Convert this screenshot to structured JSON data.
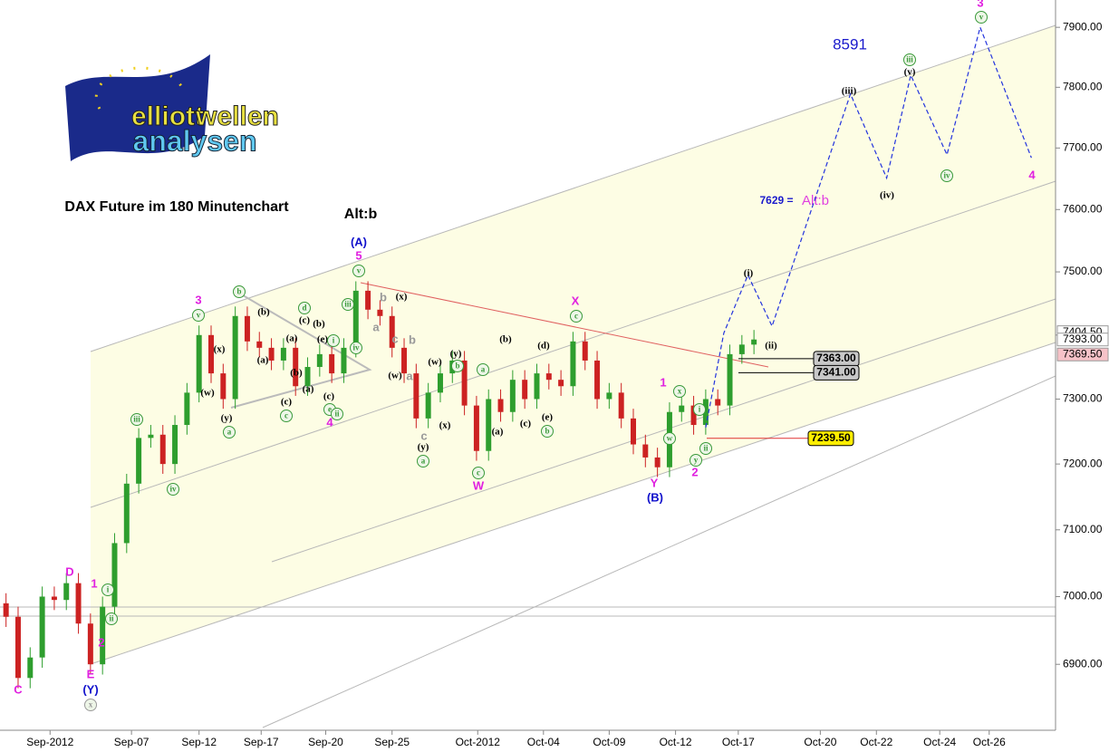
{
  "chart_data": {
    "type": "candlestick",
    "title": "DAX Future im 180 Minutenchart",
    "alt_label": "Alt:b",
    "target": "8591",
    "forecast_note": "7629 =",
    "forecast_alt": "Alt:b",
    "logo": [
      "elliott",
      "wellen",
      "analysen"
    ],
    "log_y": true,
    "up_color": "#2e9e2e",
    "down_color": "#cc2222",
    "xlim": [
      0,
      175
    ],
    "ylim": [
      6804,
      7946
    ],
    "yticks": [
      {
        "value": 6900,
        "label": "6900.00"
      },
      {
        "value": 7000,
        "label": "7000.00"
      },
      {
        "value": 7100,
        "label": "7100.00"
      },
      {
        "value": 7200,
        "label": "7200.00"
      },
      {
        "value": 7300,
        "label": "7300.00"
      },
      {
        "value": 7400,
        "label": "7400.00"
      },
      {
        "value": 7500,
        "label": "7500.00"
      },
      {
        "value": 7600,
        "label": "7600.00"
      },
      {
        "value": 7700,
        "label": "7700.00"
      },
      {
        "value": 7800,
        "label": "7800.00"
      },
      {
        "value": 7900,
        "label": "7900.00"
      }
    ],
    "xticks": [
      {
        "value": 8.3,
        "label": "Sep-2012"
      },
      {
        "value": 21.8,
        "label": "Sep-07"
      },
      {
        "value": 33,
        "label": "Sep-12"
      },
      {
        "value": 43.3,
        "label": "Sep-17"
      },
      {
        "value": 54,
        "label": "Sep-20"
      },
      {
        "value": 65,
        "label": "Sep-25"
      },
      {
        "value": 79.2,
        "label": "Oct-2012"
      },
      {
        "value": 90.1,
        "label": "Oct-04"
      },
      {
        "value": 101,
        "label": "Oct-09"
      },
      {
        "value": 112,
        "label": "Oct-12"
      },
      {
        "value": 122.4,
        "label": "Oct-17"
      },
      {
        "value": 136,
        "label": "Oct-20"
      },
      {
        "value": 145.3,
        "label": "Oct-22"
      },
      {
        "value": 155.8,
        "label": "Oct-24"
      },
      {
        "value": 164,
        "label": "Oct-26"
      }
    ],
    "x": [
      1,
      3,
      5,
      7,
      9,
      11,
      13,
      15,
      17,
      19,
      21,
      23,
      25,
      27,
      29,
      31,
      33,
      35,
      37,
      39,
      41,
      43,
      45,
      47,
      49,
      51,
      53,
      55,
      57,
      59,
      61,
      63,
      65,
      67,
      69,
      71,
      73,
      75,
      77,
      79,
      81,
      83,
      85,
      87,
      89,
      91,
      93,
      95,
      97,
      99,
      101,
      103,
      105,
      107,
      109,
      111,
      113,
      115,
      117,
      119,
      121,
      123,
      125
    ],
    "open": [
      6990,
      6970,
      6880,
      6910,
      7000,
      6995,
      7020,
      6960,
      6900,
      6985,
      7080,
      7170,
      7240,
      7245,
      7200,
      7260,
      7310,
      7400,
      7340,
      7300,
      7430,
      7390,
      7380,
      7360,
      7380,
      7320,
      7350,
      7370,
      7340,
      7380,
      7470,
      7440,
      7430,
      7380,
      7340,
      7270,
      7310,
      7340,
      7360,
      7290,
      7220,
      7300,
      7280,
      7330,
      7300,
      7340,
      7330,
      7320,
      7390,
      7360,
      7300,
      7310,
      7270,
      7230,
      7210,
      7195,
      7280,
      7290,
      7260,
      7300,
      7290,
      7370,
      7385
    ],
    "high": [
      7005,
      6985,
      6925,
      7015,
      7015,
      7035,
      7035,
      6975,
      7000,
      7095,
      7185,
      7255,
      7260,
      7260,
      7275,
      7325,
      7415,
      7415,
      7355,
      7445,
      7445,
      7405,
      7395,
      7395,
      7395,
      7365,
      7385,
      7385,
      7395,
      7485,
      7485,
      7455,
      7445,
      7395,
      7355,
      7325,
      7355,
      7375,
      7375,
      7305,
      7315,
      7315,
      7345,
      7345,
      7355,
      7355,
      7345,
      7405,
      7405,
      7375,
      7325,
      7325,
      7285,
      7245,
      7225,
      7295,
      7305,
      7305,
      7315,
      7315,
      7385,
      7400,
      7408
    ],
    "low": [
      6955,
      6865,
      6865,
      6895,
      6980,
      6980,
      6945,
      6885,
      6885,
      6970,
      7065,
      7155,
      7225,
      7185,
      7185,
      7245,
      7295,
      7325,
      7285,
      7285,
      7375,
      7365,
      7345,
      7345,
      7305,
      7305,
      7335,
      7325,
      7325,
      7365,
      7425,
      7415,
      7365,
      7325,
      7255,
      7255,
      7295,
      7325,
      7275,
      7205,
      7205,
      7265,
      7265,
      7285,
      7285,
      7315,
      7305,
      7305,
      7345,
      7285,
      7285,
      7255,
      7215,
      7195,
      7180,
      7180,
      7265,
      7245,
      7245,
      7275,
      7275,
      7355,
      7370
    ],
    "close": [
      6970,
      6880,
      6910,
      7000,
      6995,
      7020,
      6960,
      6900,
      6985,
      7080,
      7170,
      7240,
      7245,
      7200,
      7260,
      7310,
      7400,
      7340,
      7300,
      7430,
      7390,
      7380,
      7360,
      7380,
      7320,
      7350,
      7370,
      7340,
      7380,
      7470,
      7440,
      7430,
      7380,
      7340,
      7270,
      7310,
      7340,
      7360,
      7290,
      7220,
      7300,
      7280,
      7330,
      7300,
      7340,
      7330,
      7320,
      7390,
      7360,
      7300,
      7310,
      7270,
      7230,
      7210,
      7195,
      7280,
      7290,
      7260,
      7300,
      7290,
      7370,
      7385,
      7393
    ],
    "forecast": {
      "color": "#2233dd",
      "x": [
        117,
        120,
        124,
        128,
        141,
        147,
        151,
        157,
        162.5,
        171
      ],
      "y": [
        7256,
        7403,
        7495,
        7414,
        7789,
        7651,
        7820,
        7689,
        7900,
        7684
      ]
    },
    "levels": [
      {
        "value": 7363,
        "label": "7363.00",
        "color": "#c8c8c8"
      },
      {
        "value": 7341,
        "label": "7341.00",
        "color": "#c8c8c8"
      },
      {
        "value": 7239.5,
        "label": "7239.50",
        "color": "#ffee00"
      }
    ],
    "price_tags": [
      {
        "value": 7404.5,
        "label": "7404.50",
        "color": "#ffffff"
      },
      {
        "value": 7393,
        "label": "7393.00",
        "color": "#ffffff"
      },
      {
        "value": 7369.5,
        "label": "7369.50",
        "color": "#f6c2c8"
      }
    ],
    "wave_labels": [
      {
        "text": "C",
        "color": "#e020e0",
        "circled": false
      },
      {
        "text": "D",
        "color": "#e020e0",
        "circled": false
      },
      {
        "text": "E",
        "color": "#e020e0",
        "circled": false
      },
      {
        "text": "(Y)",
        "color": "#1010cc",
        "circled": false
      },
      {
        "text": "x",
        "color": "#999999",
        "circled": true
      },
      {
        "text": "1",
        "color": "#e020e0",
        "circled": false
      },
      {
        "text": "2",
        "color": "#e020e0",
        "circled": false
      },
      {
        "text": "i",
        "color": "#3a9a3a",
        "circled": true
      },
      {
        "text": "ii",
        "color": "#3a9a3a",
        "circled": true
      },
      {
        "text": "iii",
        "color": "#3a9a3a",
        "circled": true
      },
      {
        "text": "iv",
        "color": "#3a9a3a",
        "circled": true
      },
      {
        "text": "3",
        "color": "#e020e0",
        "circled": false
      },
      {
        "text": "v",
        "color": "#3a9a3a",
        "circled": true
      },
      {
        "text": "(x)",
        "color": "#000000",
        "circled": false
      },
      {
        "text": "(w)",
        "color": "#000000",
        "circled": false
      },
      {
        "text": "(y)",
        "color": "#000000",
        "circled": false
      },
      {
        "text": "a",
        "color": "#3a9a3a",
        "circled": true
      },
      {
        "text": "b",
        "color": "#3a9a3a",
        "circled": true
      },
      {
        "text": "(b)",
        "color": "#000000",
        "circled": false
      },
      {
        "text": "(a)",
        "color": "#000000",
        "circled": false
      },
      {
        "text": "(c)",
        "color": "#000000",
        "circled": false
      },
      {
        "text": "c",
        "color": "#3a9a3a",
        "circled": true
      },
      {
        "text": "(a)",
        "color": "#000000",
        "circled": false
      },
      {
        "text": "(b)",
        "color": "#000000",
        "circled": false
      },
      {
        "text": "d",
        "color": "#3a9a3a",
        "circled": true
      },
      {
        "text": "(c)",
        "color": "#000000",
        "circled": false
      },
      {
        "text": "(a)",
        "color": "#000000",
        "circled": false
      },
      {
        "text": "(b)",
        "color": "#000000",
        "circled": false
      },
      {
        "text": "(e)",
        "color": "#000000",
        "circled": false
      },
      {
        "text": "(c)",
        "color": "#000000",
        "circled": false
      },
      {
        "text": "e",
        "color": "#3a9a3a",
        "circled": true
      },
      {
        "text": "4",
        "color": "#e020e0",
        "circled": false
      },
      {
        "text": "i",
        "color": "#3a9a3a",
        "circled": true
      },
      {
        "text": "ii",
        "color": "#3a9a3a",
        "circled": true
      },
      {
        "text": "iii",
        "color": "#3a9a3a",
        "circled": true
      },
      {
        "text": "iv",
        "color": "#3a9a3a",
        "circled": true
      },
      {
        "text": "(A)",
        "color": "#1010cc",
        "circled": false
      },
      {
        "text": "5",
        "color": "#e020e0",
        "circled": false
      },
      {
        "text": "v",
        "color": "#3a9a3a",
        "circled": true
      },
      {
        "text": "(x)",
        "color": "#000000",
        "circled": false
      },
      {
        "text": "b",
        "color": "#999999",
        "circled": false
      },
      {
        "text": "a",
        "color": "#999999",
        "circled": false
      },
      {
        "text": "c",
        "color": "#999999",
        "circled": false
      },
      {
        "text": "b",
        "color": "#999999",
        "circled": false
      },
      {
        "text": "(w)",
        "color": "#000000",
        "circled": false
      },
      {
        "text": "a",
        "color": "#999999",
        "circled": false
      },
      {
        "text": "c",
        "color": "#999999",
        "circled": false
      },
      {
        "text": "(y)",
        "color": "#000000",
        "circled": false
      },
      {
        "text": "a",
        "color": "#3a9a3a",
        "circled": true
      },
      {
        "text": "(w)",
        "color": "#000000",
        "circled": false
      },
      {
        "text": "(y)",
        "color": "#000000",
        "circled": false
      },
      {
        "text": "b",
        "color": "#3a9a3a",
        "circled": true
      },
      {
        "text": "(x)",
        "color": "#000000",
        "circled": false
      },
      {
        "text": "a",
        "color": "#3a9a3a",
        "circled": true
      },
      {
        "text": "(a)",
        "color": "#000000",
        "circled": false
      },
      {
        "text": "c",
        "color": "#3a9a3a",
        "circled": true
      },
      {
        "text": "W",
        "color": "#e020e0",
        "circled": false
      },
      {
        "text": "(b)",
        "color": "#000000",
        "circled": false
      },
      {
        "text": "(c)",
        "color": "#000000",
        "circled": false
      },
      {
        "text": "(d)",
        "color": "#000000",
        "circled": false
      },
      {
        "text": "(e)",
        "color": "#000000",
        "circled": false
      },
      {
        "text": "b",
        "color": "#3a9a3a",
        "circled": true
      },
      {
        "text": "X",
        "color": "#e020e0",
        "circled": false
      },
      {
        "text": "c",
        "color": "#3a9a3a",
        "circled": true
      },
      {
        "text": "1",
        "color": "#e020e0",
        "circled": false
      },
      {
        "text": "x",
        "color": "#3a9a3a",
        "circled": true
      },
      {
        "text": "w",
        "color": "#3a9a3a",
        "circled": true
      },
      {
        "text": "i",
        "color": "#3a9a3a",
        "circled": true
      },
      {
        "text": "ii",
        "color": "#3a9a3a",
        "circled": true
      },
      {
        "text": "y",
        "color": "#3a9a3a",
        "circled": true
      },
      {
        "text": "2",
        "color": "#e020e0",
        "circled": false
      },
      {
        "text": "Y",
        "color": "#e020e0",
        "circled": false
      },
      {
        "text": "(B)",
        "color": "#1010cc",
        "circled": false
      },
      {
        "text": "(i)",
        "color": "#000000",
        "circled": false
      },
      {
        "text": "(ii)",
        "color": "#000000",
        "circled": false
      },
      {
        "text": "(iii)",
        "color": "#000000",
        "circled": false
      },
      {
        "text": "(iv)",
        "color": "#000000",
        "circled": false
      },
      {
        "text": "(v)",
        "color": "#000000",
        "circled": false
      },
      {
        "text": "iii",
        "color": "#3a9a3a",
        "circled": true
      },
      {
        "text": "iv",
        "color": "#3a9a3a",
        "circled": true
      },
      {
        "text": "3",
        "color": "#e020e0",
        "circled": false
      },
      {
        "text": "v",
        "color": "#3a9a3a",
        "circled": true
      },
      {
        "text": "4",
        "color": "#e020e0",
        "circled": false
      }
    ]
  }
}
